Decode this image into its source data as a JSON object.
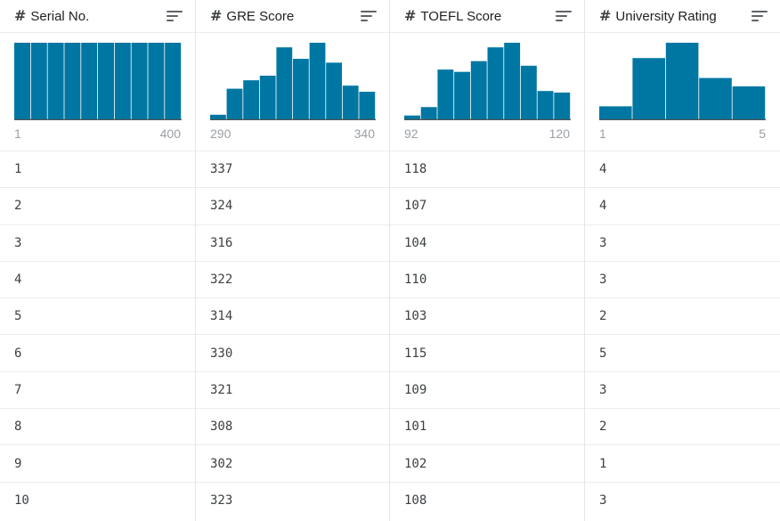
{
  "columns": [
    {
      "title": "Serial No.",
      "type_icon": "#",
      "range_min": "1",
      "range_max": "400",
      "hist": [
        1,
        1,
        1,
        1,
        1,
        1,
        1,
        1,
        1,
        1
      ],
      "values": [
        "1",
        "2",
        "3",
        "4",
        "5",
        "6",
        "7",
        "8",
        "9",
        "10"
      ]
    },
    {
      "title": "GRE Score",
      "type_icon": "#",
      "range_min": "290",
      "range_max": "340",
      "hist": [
        0.06,
        0.4,
        0.51,
        0.57,
        0.94,
        0.79,
        1.0,
        0.74,
        0.44,
        0.36
      ],
      "values": [
        "337",
        "324",
        "316",
        "322",
        "314",
        "330",
        "321",
        "308",
        "302",
        "323"
      ]
    },
    {
      "title": "TOEFL Score",
      "type_icon": "#",
      "range_min": "92",
      "range_max": "120",
      "hist": [
        0.05,
        0.16,
        0.65,
        0.62,
        0.76,
        0.94,
        1.0,
        0.7,
        0.37,
        0.35
      ],
      "values": [
        "118",
        "107",
        "104",
        "110",
        "103",
        "115",
        "109",
        "101",
        "102",
        "108"
      ]
    },
    {
      "title": "University Rating",
      "type_icon": "#",
      "range_min": "1",
      "range_max": "5",
      "hist": [
        0.17,
        0.8,
        1.0,
        0.54,
        0.43
      ],
      "values": [
        "4",
        "4",
        "3",
        "3",
        "2",
        "5",
        "3",
        "2",
        "1",
        "3"
      ]
    }
  ],
  "colors": {
    "bar": "#0077a3",
    "axis": "#555555"
  }
}
